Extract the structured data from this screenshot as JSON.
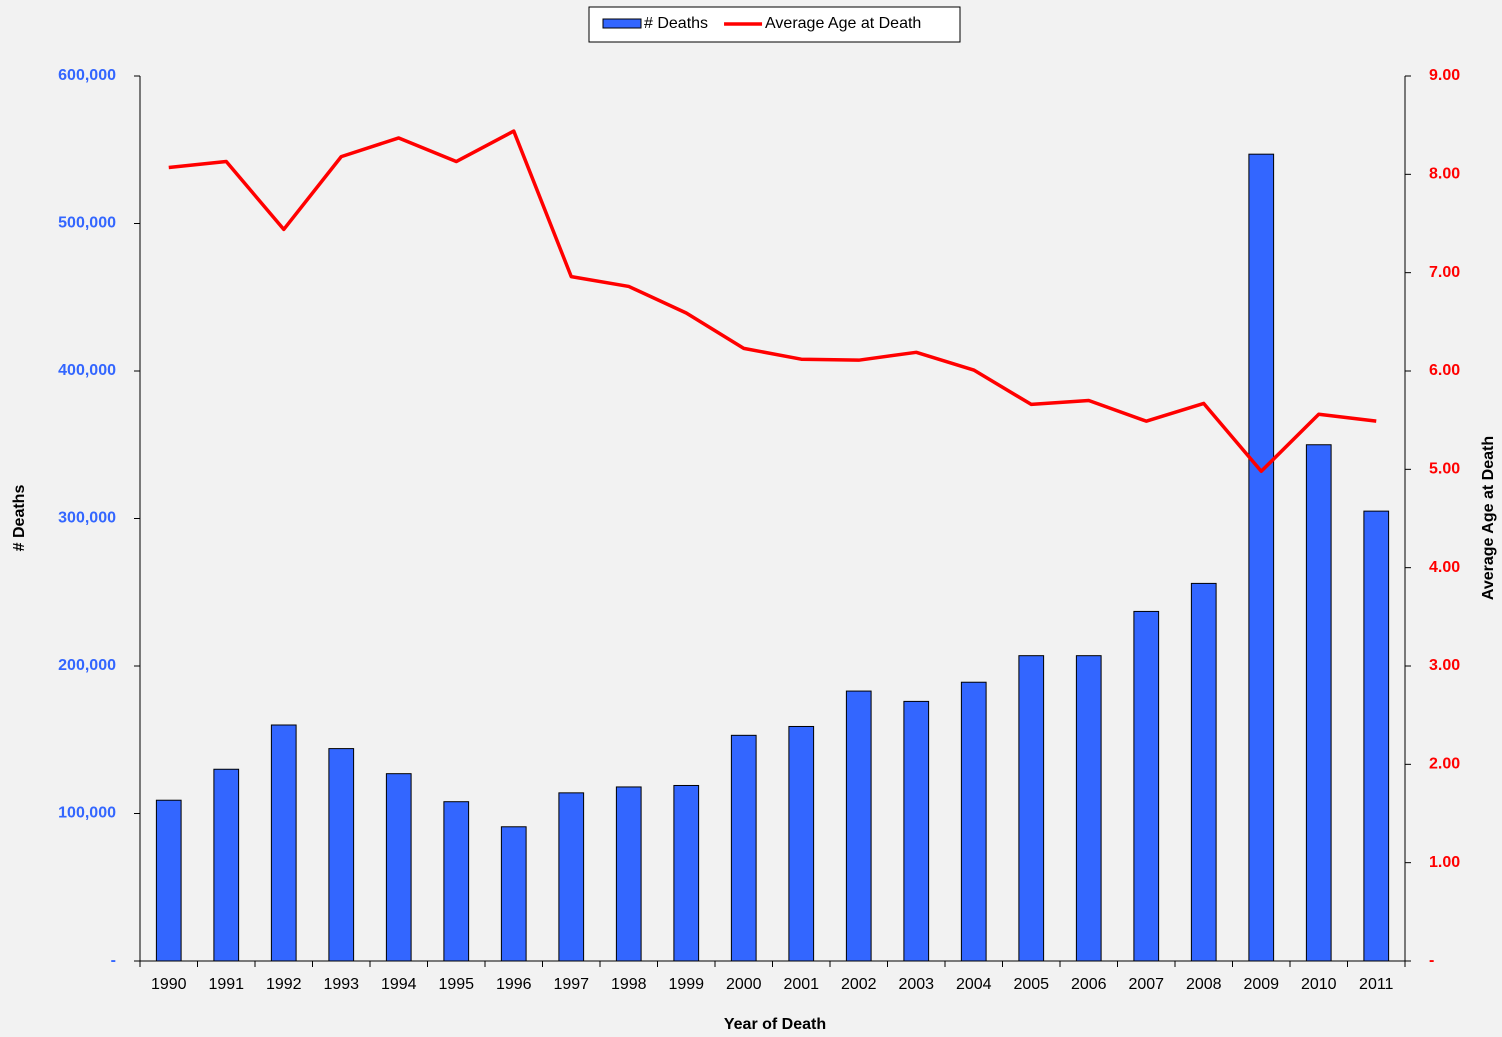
{
  "chart_data": {
    "type": "bar",
    "x_label": "Year of Death",
    "y_label": "# Deaths",
    "y2_label": "Average Age at Death",
    "categories": [
      "1990",
      "1991",
      "1992",
      "1993",
      "1994",
      "1995",
      "1996",
      "1997",
      "1998",
      "1999",
      "2000",
      "2001",
      "2002",
      "2003",
      "2004",
      "2005",
      "2006",
      "2007",
      "2008",
      "2009",
      "2010",
      "2011"
    ],
    "series": [
      {
        "name": "# Deaths",
        "type": "bar",
        "color": "#3366ff",
        "values": [
          109000,
          130000,
          160000,
          144000,
          127000,
          108000,
          91000,
          114000,
          118000,
          119000,
          153000,
          159000,
          183000,
          176000,
          189000,
          207000,
          207000,
          237000,
          256000,
          547000,
          350000,
          305000
        ]
      },
      {
        "name": "Average Age at Death",
        "type": "line",
        "axis": "y2",
        "color": "#ff0000",
        "values": [
          8.07,
          8.13,
          7.44,
          8.18,
          8.37,
          8.13,
          8.44,
          6.96,
          6.86,
          6.59,
          6.23,
          6.12,
          6.11,
          6.19,
          6.01,
          5.66,
          5.7,
          5.49,
          5.67,
          4.98,
          5.56,
          5.49
        ]
      }
    ],
    "ylim": [
      0,
      600000
    ],
    "yticks": [
      {
        "value": 0,
        "label": "-"
      },
      {
        "value": 100000,
        "label": "100,000"
      },
      {
        "value": 200000,
        "label": "200,000"
      },
      {
        "value": 300000,
        "label": "300,000"
      },
      {
        "value": 400000,
        "label": "400,000"
      },
      {
        "value": 500000,
        "label": "500,000"
      },
      {
        "value": 600000,
        "label": "600,000"
      }
    ],
    "y2lim": [
      0,
      9
    ],
    "y2ticks": [
      {
        "value": 0,
        "label": "-"
      },
      {
        "value": 1,
        "label": "1.00"
      },
      {
        "value": 2,
        "label": "2.00"
      },
      {
        "value": 3,
        "label": "3.00"
      },
      {
        "value": 4,
        "label": "4.00"
      },
      {
        "value": 5,
        "label": "5.00"
      },
      {
        "value": 6,
        "label": "6.00"
      },
      {
        "value": 7,
        "label": "7.00"
      },
      {
        "value": 8,
        "label": "8.00"
      },
      {
        "value": 9,
        "label": "9.00"
      }
    ],
    "y_tick_color": "#3366ff",
    "y2_tick_color": "#ff0000",
    "grid": false,
    "legend": "top"
  }
}
